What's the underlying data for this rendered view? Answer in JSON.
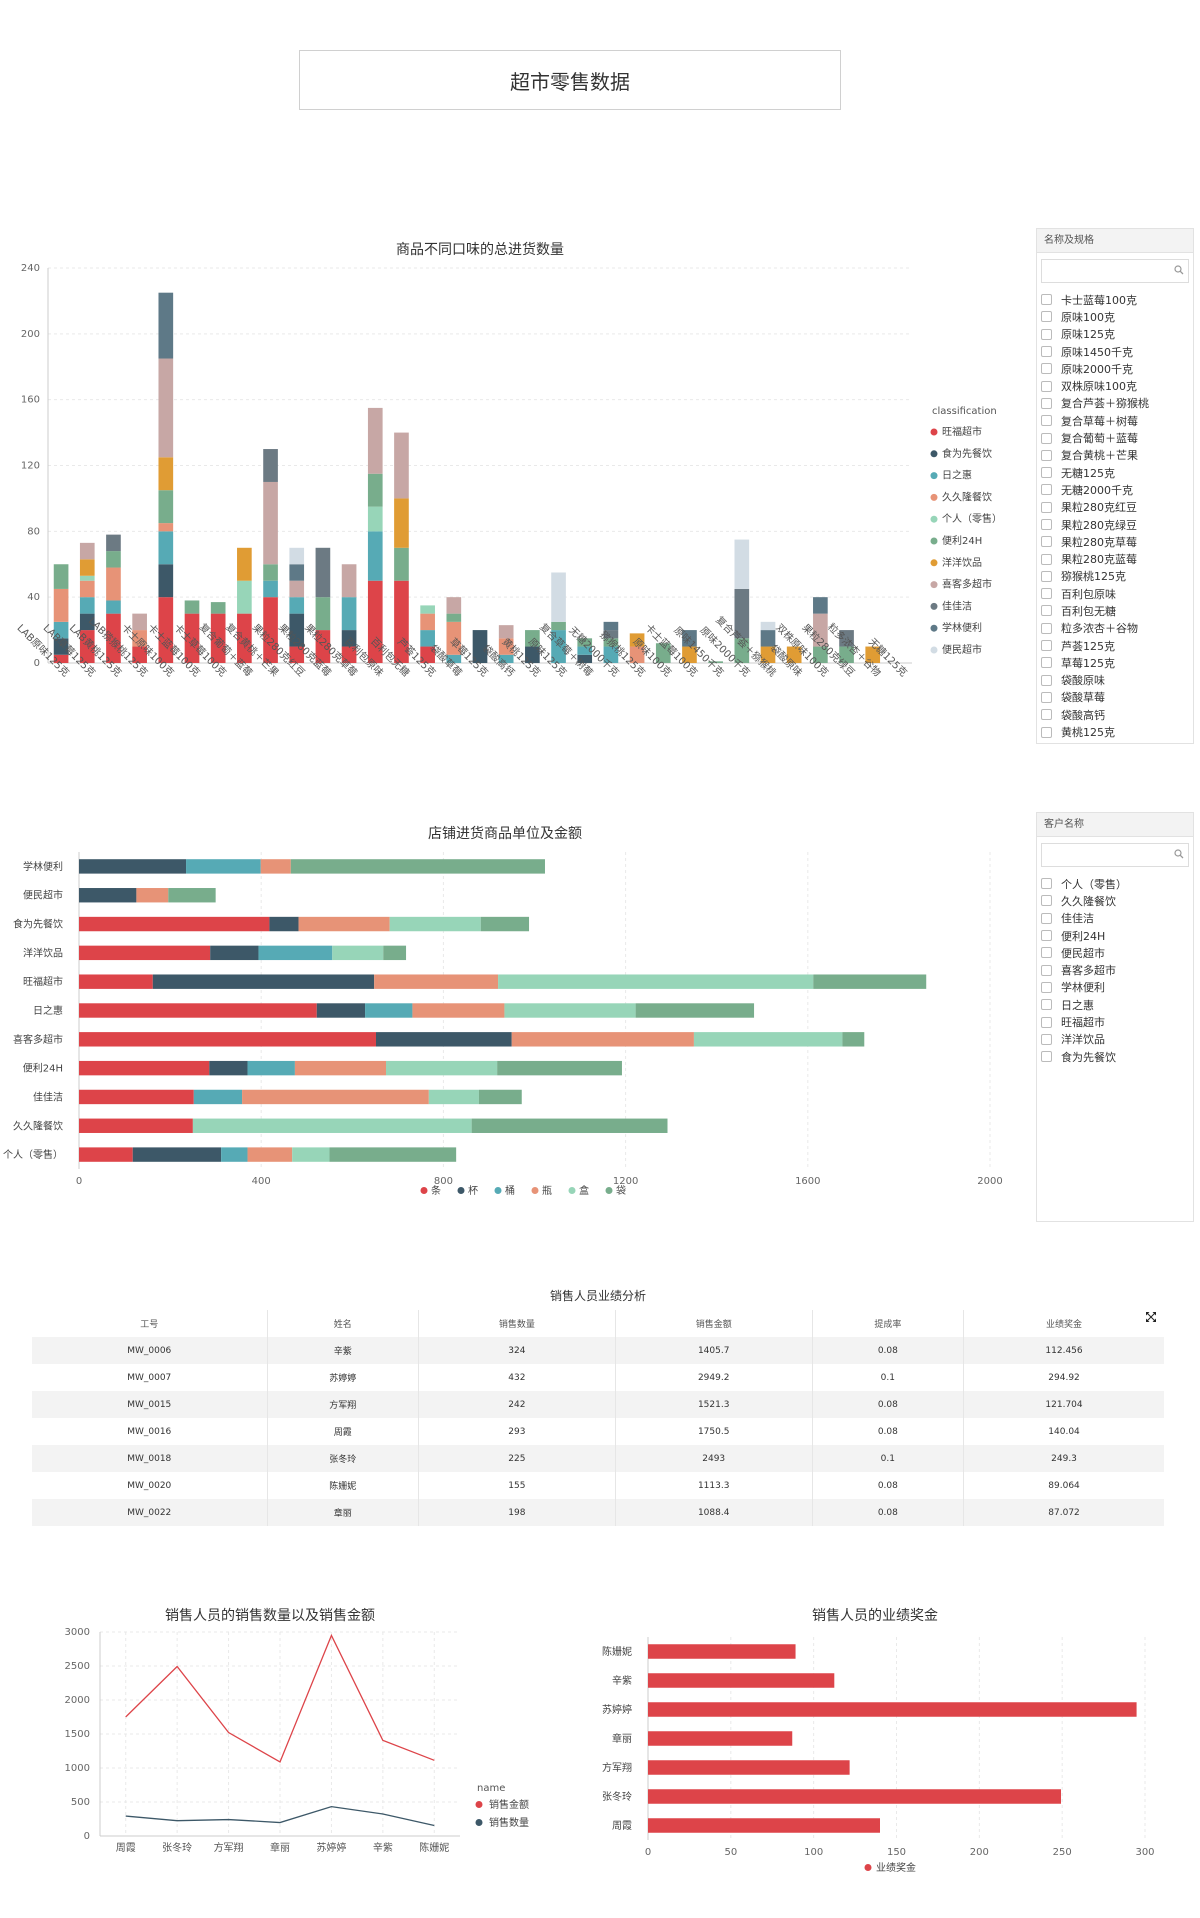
{
  "page_title": "超市零售数据",
  "colors": {
    "series": [
      "#dd4449",
      "#3d5868",
      "#56aab5",
      "#e79377",
      "#97d5b8",
      "#78ad8c",
      "#e09c34",
      "#c7a7a5",
      "#6c7a83",
      "#5e7987",
      "#d2dce4"
    ],
    "bar_red": "#dd4449",
    "grid": "#e9e9e9"
  },
  "flavor_filter": {
    "header": "名称及规格",
    "search_placeholder": "",
    "items": [
      "卡士蓝莓100克",
      "原味100克",
      "原味125克",
      "原味1450千克",
      "原味2000千克",
      "双株原味100克",
      "复合芦荟＋猕猴桃",
      "复合草莓＋树莓",
      "复合葡萄＋蓝莓",
      "复合黄桃＋芒果",
      "无糖125克",
      "无糖2000千克",
      "果粒280克红豆",
      "果粒280克绿豆",
      "果粒280克草莓",
      "果粒280克蓝莓",
      "猕猴桃125克",
      "百利包原味",
      "百利包无糖",
      "粒多浓杏＋谷物",
      "芦荟125克",
      "草莓125克",
      "袋酸原味",
      "袋酸草莓",
      "袋酸高钙",
      "黄桃125克"
    ]
  },
  "customer_filter": {
    "header": "客户名称",
    "search_placeholder": "",
    "items": [
      "个人（零售）",
      "久久隆餐饮",
      "佳佳洁",
      "便利24H",
      "便民超市",
      "喜客多超市",
      "学林便利",
      "日之惠",
      "旺福超市",
      "洋洋饮品",
      "食为先餐饮"
    ]
  },
  "table": {
    "title": "销售人员业绩分析",
    "columns": [
      "工号",
      "姓名",
      "销售数量",
      "销售金额",
      "提成率",
      "业绩奖金"
    ],
    "rows": [
      [
        "MW_0006",
        "辛紫",
        "324",
        "1405.7",
        "0.08",
        "112.456"
      ],
      [
        "MW_0007",
        "苏婷婷",
        "432",
        "2949.2",
        "0.1",
        "294.92"
      ],
      [
        "MW_0015",
        "方军翔",
        "242",
        "1521.3",
        "0.08",
        "121.704"
      ],
      [
        "MW_0016",
        "周霞",
        "293",
        "1750.5",
        "0.08",
        "140.04"
      ],
      [
        "MW_0018",
        "张冬玲",
        "225",
        "2493",
        "0.1",
        "249.3"
      ],
      [
        "MW_0020",
        "陈姗妮",
        "155",
        "1113.3",
        "0.08",
        "89.064"
      ],
      [
        "MW_0022",
        "章丽",
        "198",
        "1088.4",
        "0.08",
        "87.072"
      ]
    ],
    "expand_icon": "expand-icon"
  },
  "chart_data": [
    {
      "type": "bar",
      "stacked": true,
      "title": "商品不同口味的总进货数量",
      "xlabel": "",
      "ylabel": "",
      "ylim": [
        0,
        240
      ],
      "yticks": [
        0,
        40,
        80,
        120,
        160,
        200,
        240
      ],
      "legend_title": "classification",
      "legend_position": "right",
      "categories": [
        "LAB原味125克",
        "LAB草莓125克",
        "LAB黄桃125克",
        "LAB猕猴桃125克",
        "卡士原味100克",
        "卡士蓝莓100克",
        "卡士草莓100克",
        "复合葡萄＋蓝莓",
        "复合黄桃＋芒果",
        "果粒280克红豆",
        "果粒280克蓝莓",
        "果粒280克草莓",
        "百利包原味",
        "百利包无糖",
        "芦荟125克",
        "袋酸草莓",
        "草莓125克",
        "袋酸高钙",
        "黄桃125克",
        "原味125克",
        "复合草莓＋树莓",
        "无糖2000千克",
        "猕猴桃125克",
        "原味100克",
        "卡士蓝莓100克",
        "原味1450千克",
        "原味2000千克",
        "复合芦荟＋猕猴桃",
        "袋酸原味",
        "双株原味100克",
        "果粒280克绿豆",
        "粒多浓杏＋谷物",
        "无糖125克"
      ],
      "series": [
        {
          "name": "旺福超市",
          "values": [
            5,
            20,
            30,
            10,
            40,
            30,
            30,
            30,
            40,
            10,
            20,
            10,
            50,
            50,
            10,
            0,
            0,
            0,
            0,
            0,
            0,
            0,
            0,
            0,
            0,
            0,
            0,
            0,
            0,
            0,
            0,
            0,
            0
          ]
        },
        {
          "name": "食为先餐饮",
          "values": [
            10,
            10,
            0,
            0,
            20,
            0,
            0,
            0,
            0,
            20,
            0,
            10,
            0,
            0,
            0,
            0,
            20,
            0,
            10,
            0,
            5,
            0,
            0,
            0,
            0,
            0,
            0,
            0,
            0,
            0,
            0,
            0,
            0
          ]
        },
        {
          "name": "日之惠",
          "values": [
            10,
            10,
            8,
            0,
            20,
            0,
            0,
            0,
            10,
            10,
            0,
            20,
            30,
            0,
            10,
            5,
            0,
            5,
            0,
            20,
            5,
            10,
            0,
            0,
            0,
            0,
            0,
            0,
            0,
            0,
            0,
            0,
            0
          ]
        },
        {
          "name": "久久隆餐饮",
          "values": [
            20,
            10,
            20,
            10,
            5,
            0,
            0,
            0,
            0,
            0,
            0,
            0,
            0,
            0,
            10,
            20,
            0,
            10,
            0,
            0,
            0,
            0,
            10,
            0,
            0,
            0,
            0,
            0,
            0,
            0,
            0,
            0,
            0
          ]
        },
        {
          "name": "个人（零售）",
          "values": [
            0,
            3,
            0,
            0,
            0,
            0,
            0,
            20,
            0,
            0,
            0,
            0,
            15,
            0,
            5,
            0,
            0,
            0,
            0,
            0,
            0,
            0,
            0,
            0,
            0,
            0,
            0,
            0,
            0,
            0,
            0,
            0,
            0
          ]
        },
        {
          "name": "便利24H",
          "values": [
            15,
            0,
            10,
            0,
            20,
            8,
            7,
            0,
            10,
            0,
            20,
            0,
            20,
            20,
            0,
            5,
            0,
            0,
            10,
            5,
            5,
            5,
            0,
            12,
            0,
            1,
            15,
            0,
            0,
            10,
            10,
            0,
            0
          ]
        },
        {
          "name": "洋洋饮品",
          "values": [
            0,
            10,
            0,
            0,
            20,
            0,
            0,
            20,
            0,
            0,
            0,
            0,
            0,
            30,
            0,
            0,
            0,
            0,
            0,
            0,
            0,
            0,
            8,
            0,
            10,
            0,
            0,
            10,
            10,
            0,
            0,
            10,
            0
          ]
        },
        {
          "name": "喜客多超市",
          "values": [
            0,
            10,
            0,
            10,
            60,
            0,
            0,
            0,
            50,
            10,
            0,
            20,
            40,
            40,
            0,
            10,
            0,
            8,
            0,
            0,
            0,
            0,
            0,
            0,
            0,
            0,
            0,
            0,
            0,
            20,
            0,
            0,
            0
          ]
        },
        {
          "name": "佳佳洁",
          "values": [
            0,
            0,
            10,
            0,
            0,
            0,
            0,
            0,
            20,
            0,
            30,
            0,
            0,
            0,
            0,
            0,
            0,
            0,
            0,
            0,
            0,
            5,
            0,
            0,
            0,
            0,
            30,
            0,
            0,
            0,
            10,
            0,
            0
          ]
        },
        {
          "name": "学林便利",
          "values": [
            0,
            0,
            0,
            0,
            40,
            0,
            0,
            0,
            0,
            10,
            0,
            0,
            0,
            0,
            0,
            0,
            0,
            0,
            0,
            0,
            0,
            5,
            0,
            0,
            10,
            0,
            0,
            10,
            0,
            10,
            0,
            0,
            0
          ]
        },
        {
          "name": "便民超市",
          "values": [
            0,
            0,
            0,
            0,
            0,
            0,
            0,
            0,
            0,
            10,
            0,
            0,
            0,
            0,
            0,
            0,
            0,
            0,
            0,
            30,
            0,
            0,
            0,
            0,
            0,
            0,
            30,
            5,
            0,
            0,
            0,
            0,
            0
          ]
        }
      ]
    },
    {
      "type": "bar",
      "orientation": "horizontal",
      "stacked": true,
      "title": "店铺进货商品单位及金额",
      "xlim": [
        0,
        2000
      ],
      "xticks": [
        0,
        400,
        800,
        1200,
        1600,
        2000
      ],
      "legend_position": "bottom",
      "categories": [
        "学林便利",
        "便民超市",
        "食为先餐饮",
        "洋洋饮品",
        "旺福超市",
        "日之惠",
        "喜客多超市",
        "便利24H",
        "佳佳洁",
        "久久隆餐饮",
        "个人（零售）"
      ],
      "series": [
        {
          "name": "条",
          "values": [
            0,
            0,
            418,
            288,
            162,
            522,
            652,
            286,
            252,
            250,
            118
          ]
        },
        {
          "name": "杯",
          "values": [
            235,
            126,
            64,
            106,
            486,
            106,
            298,
            84,
            0,
            0,
            194
          ]
        },
        {
          "name": "桶",
          "values": [
            164,
            0,
            0,
            162,
            0,
            104,
            0,
            104,
            106,
            0,
            58
          ]
        },
        {
          "name": "瓶",
          "values": [
            66,
            70,
            200,
            0,
            272,
            202,
            400,
            200,
            410,
            0,
            98
          ]
        },
        {
          "name": "盒",
          "values": [
            0,
            0,
            200,
            112,
            692,
            288,
            326,
            244,
            110,
            612,
            82
          ]
        },
        {
          "name": "袋",
          "values": [
            558,
            104,
            106,
            50,
            248,
            260,
            48,
            274,
            94,
            430,
            278
          ]
        }
      ]
    },
    {
      "type": "line",
      "title": "销售人员的销售数量以及销售金额",
      "categories": [
        "周霞",
        "张冬玲",
        "方军翔",
        "章丽",
        "苏婷婷",
        "辛紫",
        "陈姗妮"
      ],
      "ylim": [
        0,
        3000
      ],
      "yticks": [
        0,
        500,
        1000,
        1500,
        2000,
        2500,
        3000
      ],
      "legend_title": "name",
      "legend_position": "bottom-right",
      "series": [
        {
          "name": "销售金额",
          "values": [
            1750.5,
            2493,
            1521.3,
            1088.4,
            2949.2,
            1405.7,
            1113.3
          ]
        },
        {
          "name": "销售数量",
          "values": [
            293,
            225,
            242,
            198,
            432,
            324,
            155
          ]
        }
      ]
    },
    {
      "type": "bar",
      "orientation": "horizontal",
      "title": "销售人员的业绩奖金",
      "categories": [
        "陈姗妮",
        "辛紫",
        "苏婷婷",
        "章丽",
        "方军翔",
        "张冬玲",
        "周霞"
      ],
      "xlim": [
        0,
        300
      ],
      "xticks": [
        0,
        50,
        100,
        150,
        200,
        250,
        300
      ],
      "legend_position": "bottom",
      "series": [
        {
          "name": "业绩奖金",
          "values": [
            89.064,
            112.456,
            294.92,
            87.072,
            121.704,
            249.3,
            140.04
          ]
        }
      ]
    }
  ]
}
